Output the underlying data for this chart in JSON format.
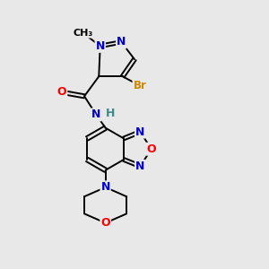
{
  "background_color": "#e8e8e8",
  "bond_color": "#000000",
  "atom_colors": {
    "N": "#0000cc",
    "O": "#ff0000",
    "Br": "#cc8800",
    "H": "#3a8a8a",
    "C": "#000000"
  },
  "figsize": [
    3.0,
    3.0
  ],
  "dpi": 100
}
